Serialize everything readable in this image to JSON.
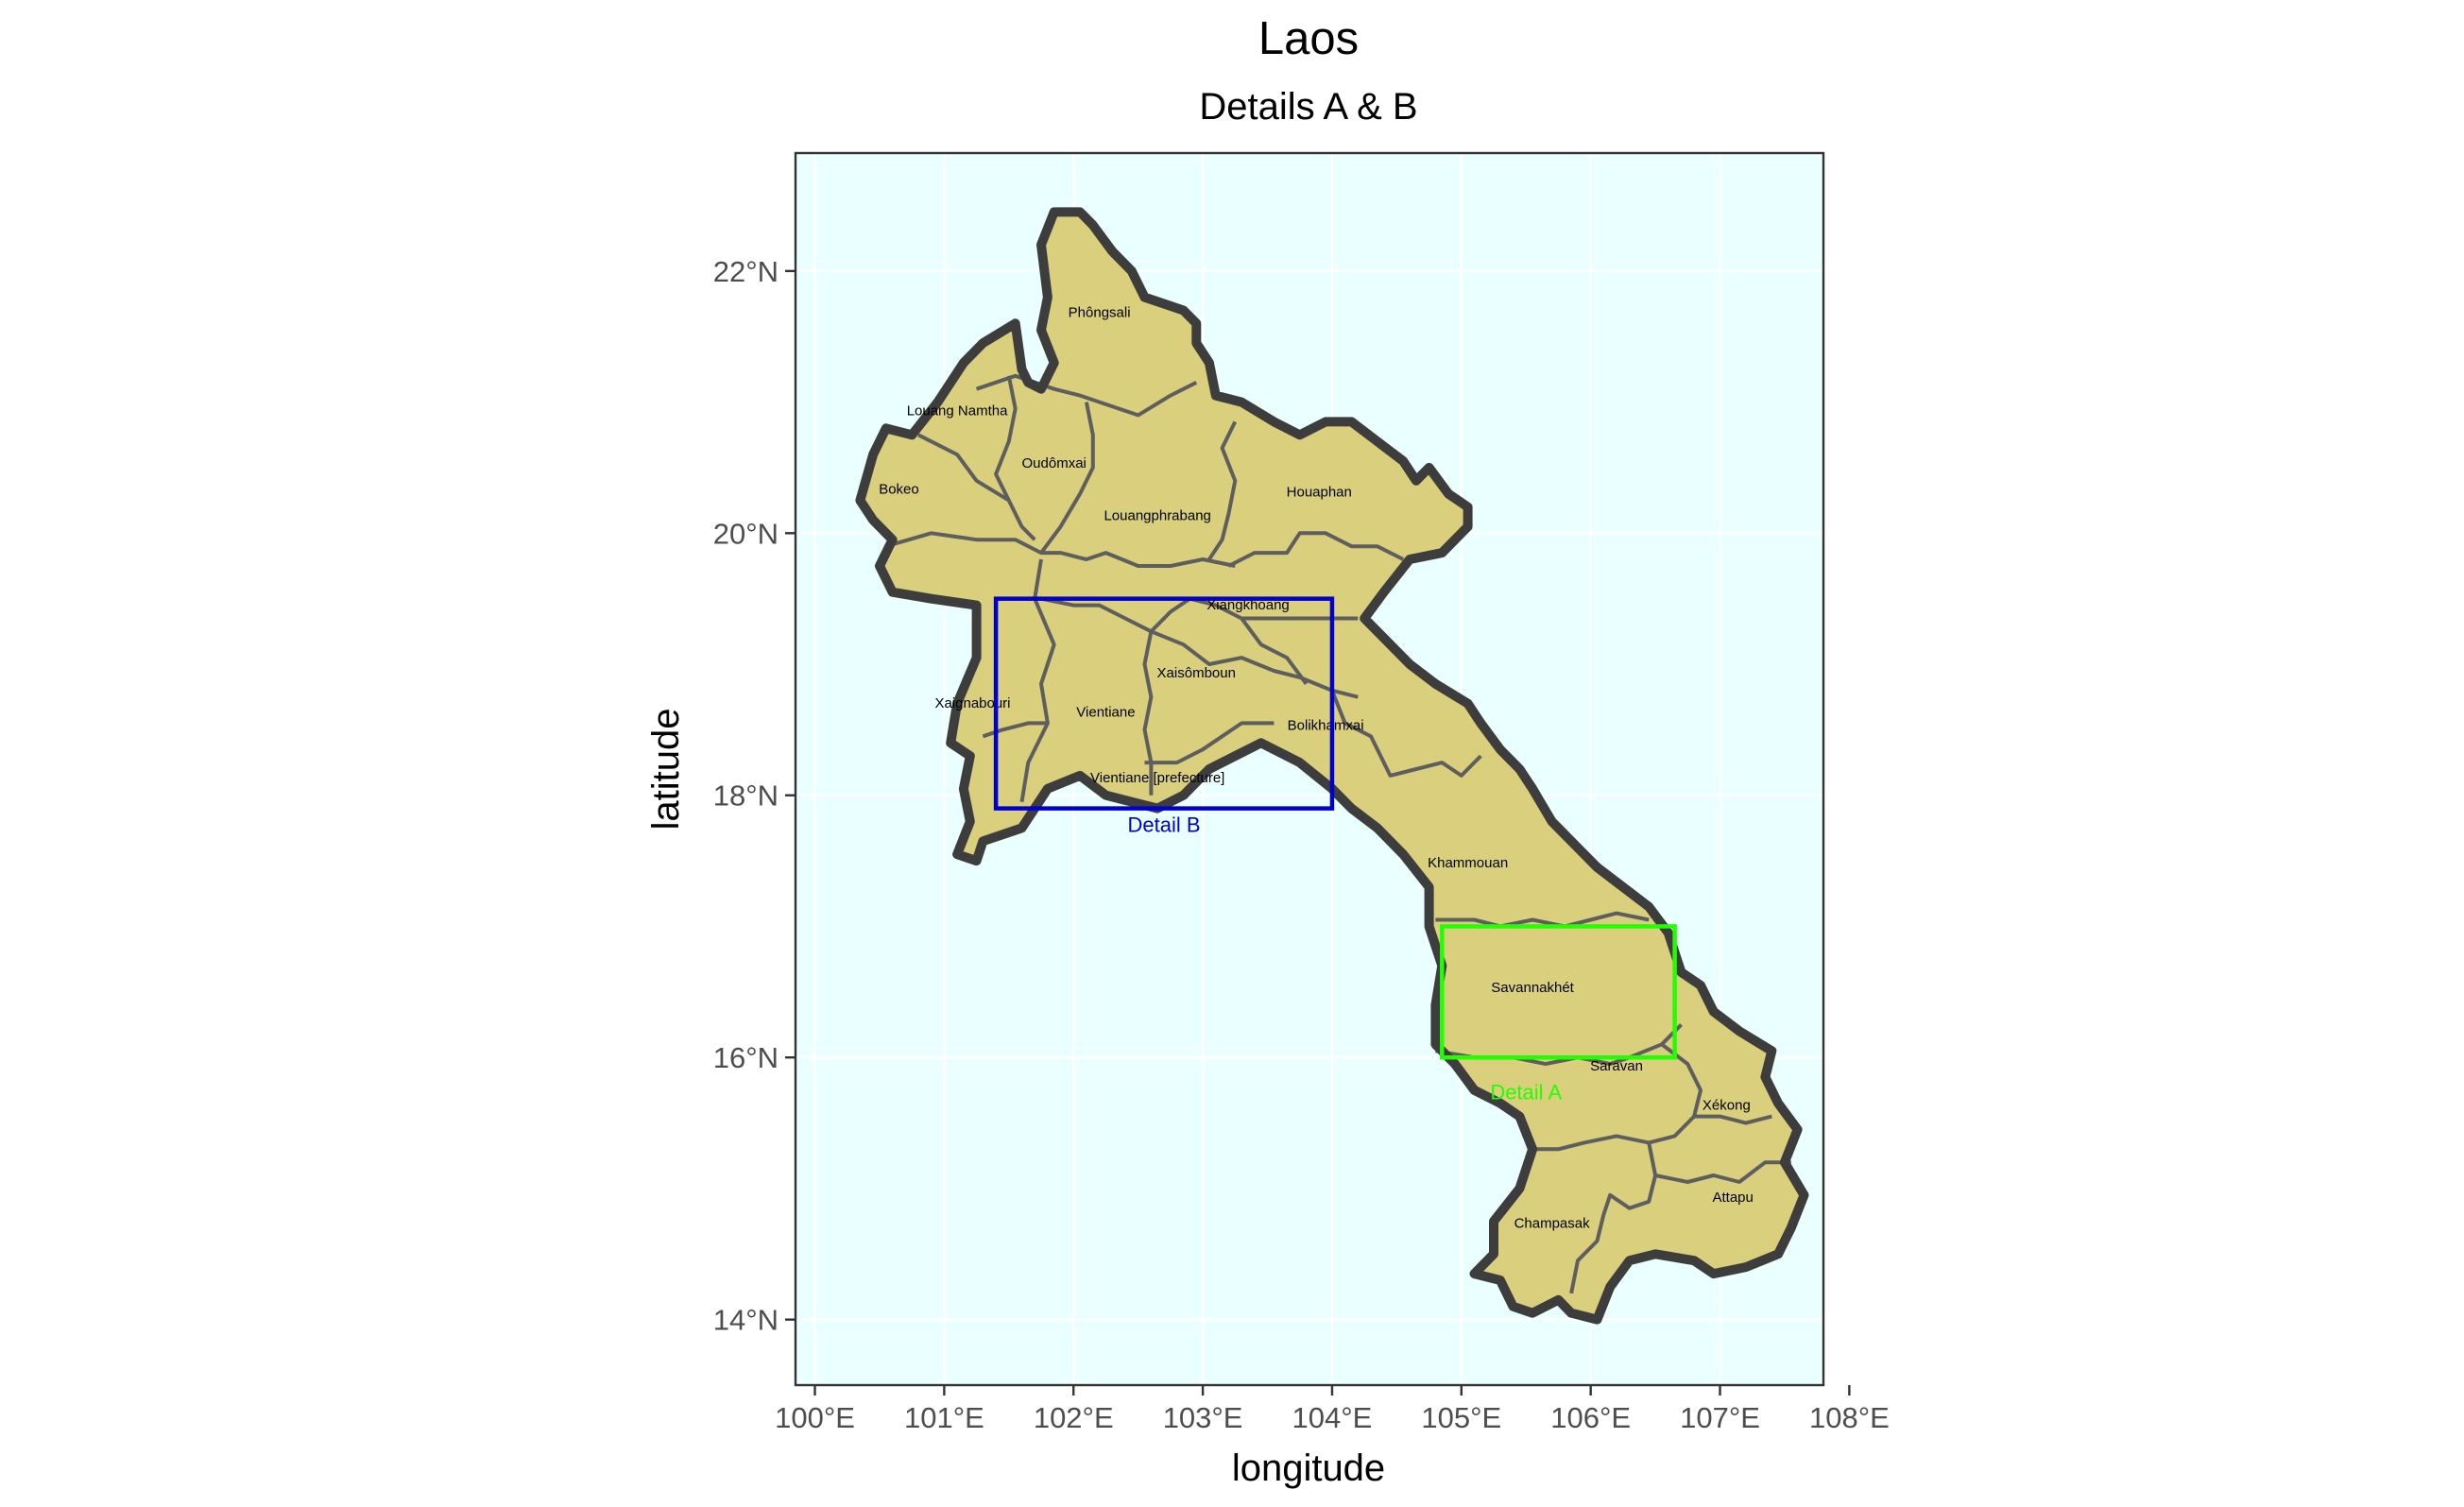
{
  "title": "Laos",
  "subtitle": "Details A & B",
  "xlabel": "longitude",
  "ylabel": "latitude",
  "x_ticks": [
    {
      "value": 100,
      "label": "100°E"
    },
    {
      "value": 101,
      "label": "101°E"
    },
    {
      "value": 102,
      "label": "102°E"
    },
    {
      "value": 103,
      "label": "103°E"
    },
    {
      "value": 104,
      "label": "104°E"
    },
    {
      "value": 105,
      "label": "105°E"
    },
    {
      "value": 106,
      "label": "106°E"
    },
    {
      "value": 107,
      "label": "107°E"
    },
    {
      "value": 108,
      "label": "108°E"
    }
  ],
  "y_ticks": [
    {
      "value": 14,
      "label": "14°N"
    },
    {
      "value": 16,
      "label": "16°N"
    },
    {
      "value": 18,
      "label": "18°N"
    },
    {
      "value": 20,
      "label": "20°N"
    },
    {
      "value": 22,
      "label": "22°N"
    }
  ],
  "extent": {
    "lon": [
      99.85,
      107.8
    ],
    "lat": [
      13.5,
      22.9
    ]
  },
  "colors": {
    "panel": "#eaffff",
    "land": "#d9cf7d",
    "border_outer": "#3d3d3d",
    "border_inner": "#5e5e5e",
    "detail_a": "#22ff00",
    "detail_b": "#0000cc"
  },
  "provinces": [
    {
      "name": "Phôngsali",
      "lon": 102.2,
      "lat": 21.65
    },
    {
      "name": "Louang Namtha",
      "lon": 101.1,
      "lat": 20.9
    },
    {
      "name": "Oudômxai",
      "lon": 101.85,
      "lat": 20.5
    },
    {
      "name": "Bokeo",
      "lon": 100.65,
      "lat": 20.3
    },
    {
      "name": "Louangphrabang",
      "lon": 102.65,
      "lat": 20.1
    },
    {
      "name": "Houaphan",
      "lon": 103.9,
      "lat": 20.28
    },
    {
      "name": "Xiangkhoang",
      "lon": 103.35,
      "lat": 19.42
    },
    {
      "name": "Xaisômboun",
      "lon": 102.95,
      "lat": 18.9
    },
    {
      "name": "Xaignabouri",
      "lon": 101.22,
      "lat": 18.67
    },
    {
      "name": "Vientiane",
      "lon": 102.25,
      "lat": 18.6
    },
    {
      "name": "Bolikhamxai",
      "lon": 103.95,
      "lat": 18.5
    },
    {
      "name": "Vientiane [prefecture]",
      "lon": 102.65,
      "lat": 18.1
    },
    {
      "name": "Khammouan",
      "lon": 105.05,
      "lat": 17.45
    },
    {
      "name": "Savannakhét",
      "lon": 105.55,
      "lat": 16.5
    },
    {
      "name": "Saravan",
      "lon": 106.2,
      "lat": 15.9
    },
    {
      "name": "Xékong",
      "lon": 107.05,
      "lat": 15.6
    },
    {
      "name": "Attapu",
      "lon": 107.1,
      "lat": 14.9
    },
    {
      "name": "Champasak",
      "lon": 105.7,
      "lat": 14.7
    }
  ],
  "detail_boxes": [
    {
      "name": "Detail A",
      "label": "Detail A",
      "lon": [
        104.85,
        106.65
      ],
      "lat": [
        16.0,
        17.0
      ],
      "label_lon": 105.5,
      "label_lat": 15.68,
      "color": "#22ff00"
    },
    {
      "name": "Detail B",
      "label": "Detail B",
      "lon": [
        101.4,
        104.0
      ],
      "lat": [
        17.9,
        19.5
      ],
      "label_lon": 102.7,
      "label_lat": 17.72,
      "color": "#0000cc"
    }
  ],
  "outline": [
    [
      100.35,
      20.25
    ],
    [
      100.45,
      20.6
    ],
    [
      100.55,
      20.8
    ],
    [
      100.75,
      20.75
    ],
    [
      100.95,
      21.0
    ],
    [
      101.15,
      21.3
    ],
    [
      101.3,
      21.45
    ],
    [
      101.55,
      21.6
    ],
    [
      101.6,
      21.25
    ],
    [
      101.65,
      21.15
    ],
    [
      101.75,
      21.1
    ],
    [
      101.85,
      21.3
    ],
    [
      101.75,
      21.55
    ],
    [
      101.8,
      21.8
    ],
    [
      101.75,
      22.2
    ],
    [
      101.85,
      22.45
    ],
    [
      102.05,
      22.45
    ],
    [
      102.15,
      22.35
    ],
    [
      102.3,
      22.15
    ],
    [
      102.45,
      22.0
    ],
    [
      102.55,
      21.8
    ],
    [
      102.7,
      21.75
    ],
    [
      102.85,
      21.7
    ],
    [
      102.95,
      21.6
    ],
    [
      102.95,
      21.45
    ],
    [
      103.05,
      21.3
    ],
    [
      103.1,
      21.05
    ],
    [
      103.3,
      21.0
    ],
    [
      103.55,
      20.85
    ],
    [
      103.75,
      20.75
    ],
    [
      103.95,
      20.85
    ],
    [
      104.15,
      20.85
    ],
    [
      104.35,
      20.7
    ],
    [
      104.55,
      20.55
    ],
    [
      104.65,
      20.4
    ],
    [
      104.75,
      20.5
    ],
    [
      104.9,
      20.3
    ],
    [
      105.05,
      20.2
    ],
    [
      105.05,
      20.05
    ],
    [
      104.85,
      19.85
    ],
    [
      104.6,
      19.8
    ],
    [
      104.4,
      19.55
    ],
    [
      104.25,
      19.35
    ],
    [
      104.4,
      19.2
    ],
    [
      104.6,
      19.0
    ],
    [
      104.8,
      18.85
    ],
    [
      105.05,
      18.7
    ],
    [
      105.15,
      18.55
    ],
    [
      105.3,
      18.35
    ],
    [
      105.45,
      18.2
    ],
    [
      105.55,
      18.05
    ],
    [
      105.7,
      17.8
    ],
    [
      105.85,
      17.65
    ],
    [
      106.05,
      17.45
    ],
    [
      106.25,
      17.3
    ],
    [
      106.45,
      17.15
    ],
    [
      106.6,
      16.95
    ],
    [
      106.7,
      16.65
    ],
    [
      106.85,
      16.55
    ],
    [
      106.95,
      16.35
    ],
    [
      107.15,
      16.2
    ],
    [
      107.4,
      16.05
    ],
    [
      107.35,
      15.85
    ],
    [
      107.45,
      15.65
    ],
    [
      107.6,
      15.45
    ],
    [
      107.5,
      15.2
    ],
    [
      107.65,
      14.95
    ],
    [
      107.55,
      14.7
    ],
    [
      107.45,
      14.5
    ],
    [
      107.2,
      14.4
    ],
    [
      106.95,
      14.35
    ],
    [
      106.8,
      14.45
    ],
    [
      106.5,
      14.5
    ],
    [
      106.3,
      14.45
    ],
    [
      106.15,
      14.25
    ],
    [
      106.05,
      14.0
    ],
    [
      105.85,
      14.05
    ],
    [
      105.75,
      14.15
    ],
    [
      105.55,
      14.05
    ],
    [
      105.4,
      14.1
    ],
    [
      105.3,
      14.3
    ],
    [
      105.1,
      14.35
    ],
    [
      105.25,
      14.5
    ],
    [
      105.25,
      14.75
    ],
    [
      105.45,
      15.0
    ],
    [
      105.55,
      15.3
    ],
    [
      105.45,
      15.55
    ],
    [
      105.3,
      15.65
    ],
    [
      105.1,
      15.75
    ],
    [
      104.95,
      15.95
    ],
    [
      104.8,
      16.1
    ],
    [
      104.8,
      16.4
    ],
    [
      104.85,
      16.7
    ],
    [
      104.75,
      17.0
    ],
    [
      104.75,
      17.3
    ],
    [
      104.55,
      17.55
    ],
    [
      104.35,
      17.75
    ],
    [
      104.15,
      17.9
    ],
    [
      104.0,
      18.05
    ],
    [
      103.75,
      18.25
    ],
    [
      103.45,
      18.4
    ],
    [
      103.25,
      18.3
    ],
    [
      103.05,
      18.2
    ],
    [
      102.85,
      18.0
    ],
    [
      102.65,
      17.9
    ],
    [
      102.45,
      17.95
    ],
    [
      102.25,
      18.0
    ],
    [
      102.05,
      18.15
    ],
    [
      101.8,
      18.05
    ],
    [
      101.6,
      17.75
    ],
    [
      101.3,
      17.65
    ],
    [
      101.25,
      17.5
    ],
    [
      101.1,
      17.55
    ],
    [
      101.2,
      17.8
    ],
    [
      101.15,
      18.05
    ],
    [
      101.2,
      18.3
    ],
    [
      101.05,
      18.4
    ],
    [
      101.1,
      18.7
    ],
    [
      101.25,
      19.05
    ],
    [
      101.25,
      19.45
    ],
    [
      100.9,
      19.5
    ],
    [
      100.6,
      19.55
    ],
    [
      100.5,
      19.75
    ],
    [
      100.6,
      19.95
    ],
    [
      100.45,
      20.1
    ]
  ],
  "inner_borders": [
    [
      [
        101.25,
        21.1
      ],
      [
        101.55,
        21.2
      ],
      [
        101.85,
        21.1
      ],
      [
        102.05,
        21.05
      ],
      [
        102.35,
        20.95
      ],
      [
        102.5,
        20.9
      ],
      [
        102.75,
        21.05
      ],
      [
        102.95,
        21.15
      ]
    ],
    [
      [
        100.8,
        20.75
      ],
      [
        101.1,
        20.6
      ],
      [
        101.25,
        20.4
      ],
      [
        101.5,
        20.25
      ],
      [
        101.6,
        20.05
      ],
      [
        101.7,
        19.95
      ]
    ],
    [
      [
        101.5,
        21.2
      ],
      [
        101.55,
        20.95
      ],
      [
        101.5,
        20.7
      ],
      [
        101.4,
        20.45
      ],
      [
        101.5,
        20.25
      ]
    ],
    [
      [
        102.1,
        21.0
      ],
      [
        102.15,
        20.75
      ],
      [
        102.15,
        20.5
      ],
      [
        102.05,
        20.3
      ],
      [
        101.9,
        20.05
      ],
      [
        101.75,
        19.85
      ]
    ],
    [
      [
        100.55,
        19.9
      ],
      [
        100.9,
        20.0
      ],
      [
        101.25,
        19.95
      ],
      [
        101.55,
        19.95
      ],
      [
        101.75,
        19.85
      ],
      [
        101.9,
        19.85
      ],
      [
        102.1,
        19.8
      ],
      [
        102.25,
        19.85
      ],
      [
        102.5,
        19.75
      ],
      [
        102.75,
        19.75
      ],
      [
        103.0,
        19.8
      ],
      [
        103.25,
        19.75
      ]
    ],
    [
      [
        103.25,
        20.85
      ],
      [
        103.15,
        20.65
      ],
      [
        103.25,
        20.4
      ],
      [
        103.2,
        20.15
      ],
      [
        103.15,
        19.95
      ],
      [
        103.05,
        19.8
      ]
    ],
    [
      [
        103.2,
        19.75
      ],
      [
        103.4,
        19.85
      ],
      [
        103.65,
        19.85
      ],
      [
        103.75,
        20.0
      ],
      [
        103.95,
        20.0
      ],
      [
        104.15,
        19.9
      ],
      [
        104.35,
        19.9
      ],
      [
        104.55,
        19.8
      ]
    ],
    [
      [
        101.75,
        19.5
      ],
      [
        102.0,
        19.45
      ],
      [
        102.2,
        19.45
      ],
      [
        102.4,
        19.35
      ],
      [
        102.6,
        19.25
      ],
      [
        102.75,
        19.4
      ],
      [
        102.9,
        19.5
      ],
      [
        103.1,
        19.45
      ],
      [
        103.3,
        19.35
      ],
      [
        103.6,
        19.35
      ],
      [
        103.85,
        19.35
      ],
      [
        104.2,
        19.35
      ]
    ],
    [
      [
        101.75,
        19.8
      ],
      [
        101.7,
        19.5
      ],
      [
        101.85,
        19.15
      ],
      [
        101.75,
        18.85
      ],
      [
        101.8,
        18.55
      ],
      [
        101.65,
        18.25
      ],
      [
        101.6,
        17.95
      ]
    ],
    [
      [
        102.6,
        19.25
      ],
      [
        102.55,
        19.0
      ],
      [
        102.6,
        18.75
      ],
      [
        102.55,
        18.5
      ],
      [
        102.6,
        18.25
      ],
      [
        102.6,
        18.0
      ]
    ],
    [
      [
        101.8,
        18.55
      ],
      [
        101.65,
        18.55
      ],
      [
        101.45,
        18.5
      ],
      [
        101.3,
        18.45
      ]
    ],
    [
      [
        102.6,
        19.25
      ],
      [
        102.85,
        19.15
      ],
      [
        103.05,
        19.0
      ],
      [
        103.3,
        19.05
      ],
      [
        103.55,
        18.95
      ],
      [
        103.75,
        18.9
      ],
      [
        104.0,
        18.8
      ],
      [
        104.2,
        18.75
      ]
    ],
    [
      [
        102.55,
        18.25
      ],
      [
        102.8,
        18.25
      ],
      [
        103.0,
        18.35
      ],
      [
        103.15,
        18.45
      ],
      [
        103.3,
        18.55
      ],
      [
        103.55,
        18.55
      ]
    ],
    [
      [
        103.3,
        19.35
      ],
      [
        103.45,
        19.15
      ],
      [
        103.65,
        19.05
      ],
      [
        103.8,
        18.85
      ]
    ],
    [
      [
        104.0,
        18.8
      ],
      [
        104.1,
        18.55
      ],
      [
        104.3,
        18.45
      ],
      [
        104.45,
        18.15
      ],
      [
        104.65,
        18.2
      ],
      [
        104.85,
        18.25
      ],
      [
        105.0,
        18.15
      ],
      [
        105.15,
        18.3
      ]
    ],
    [
      [
        104.8,
        17.05
      ],
      [
        105.1,
        17.05
      ],
      [
        105.3,
        17.0
      ],
      [
        105.55,
        17.05
      ],
      [
        105.8,
        17.0
      ],
      [
        106.0,
        17.05
      ],
      [
        106.2,
        17.1
      ],
      [
        106.45,
        17.05
      ]
    ],
    [
      [
        104.8,
        16.05
      ],
      [
        105.1,
        16.0
      ],
      [
        105.4,
        16.0
      ],
      [
        105.65,
        15.95
      ],
      [
        105.9,
        16.0
      ],
      [
        106.15,
        15.95
      ],
      [
        106.3,
        16.0
      ],
      [
        106.55,
        16.1
      ],
      [
        106.7,
        16.25
      ]
    ],
    [
      [
        106.55,
        16.1
      ],
      [
        106.75,
        15.95
      ],
      [
        106.85,
        15.75
      ],
      [
        106.8,
        15.55
      ],
      [
        106.65,
        15.4
      ],
      [
        106.45,
        15.35
      ],
      [
        106.2,
        15.4
      ],
      [
        105.95,
        15.35
      ],
      [
        105.75,
        15.3
      ],
      [
        105.55,
        15.3
      ]
    ],
    [
      [
        106.8,
        15.55
      ],
      [
        107.0,
        15.55
      ],
      [
        107.2,
        15.5
      ],
      [
        107.4,
        15.55
      ]
    ],
    [
      [
        106.45,
        15.35
      ],
      [
        106.5,
        15.1
      ],
      [
        106.45,
        14.9
      ],
      [
        106.3,
        14.85
      ],
      [
        106.15,
        14.95
      ],
      [
        106.1,
        14.8
      ],
      [
        106.05,
        14.6
      ],
      [
        105.9,
        14.45
      ],
      [
        105.85,
        14.2
      ]
    ],
    [
      [
        106.5,
        15.1
      ],
      [
        106.75,
        15.05
      ],
      [
        106.95,
        15.1
      ],
      [
        107.15,
        15.05
      ],
      [
        107.35,
        15.2
      ],
      [
        107.55,
        15.2
      ]
    ]
  ]
}
